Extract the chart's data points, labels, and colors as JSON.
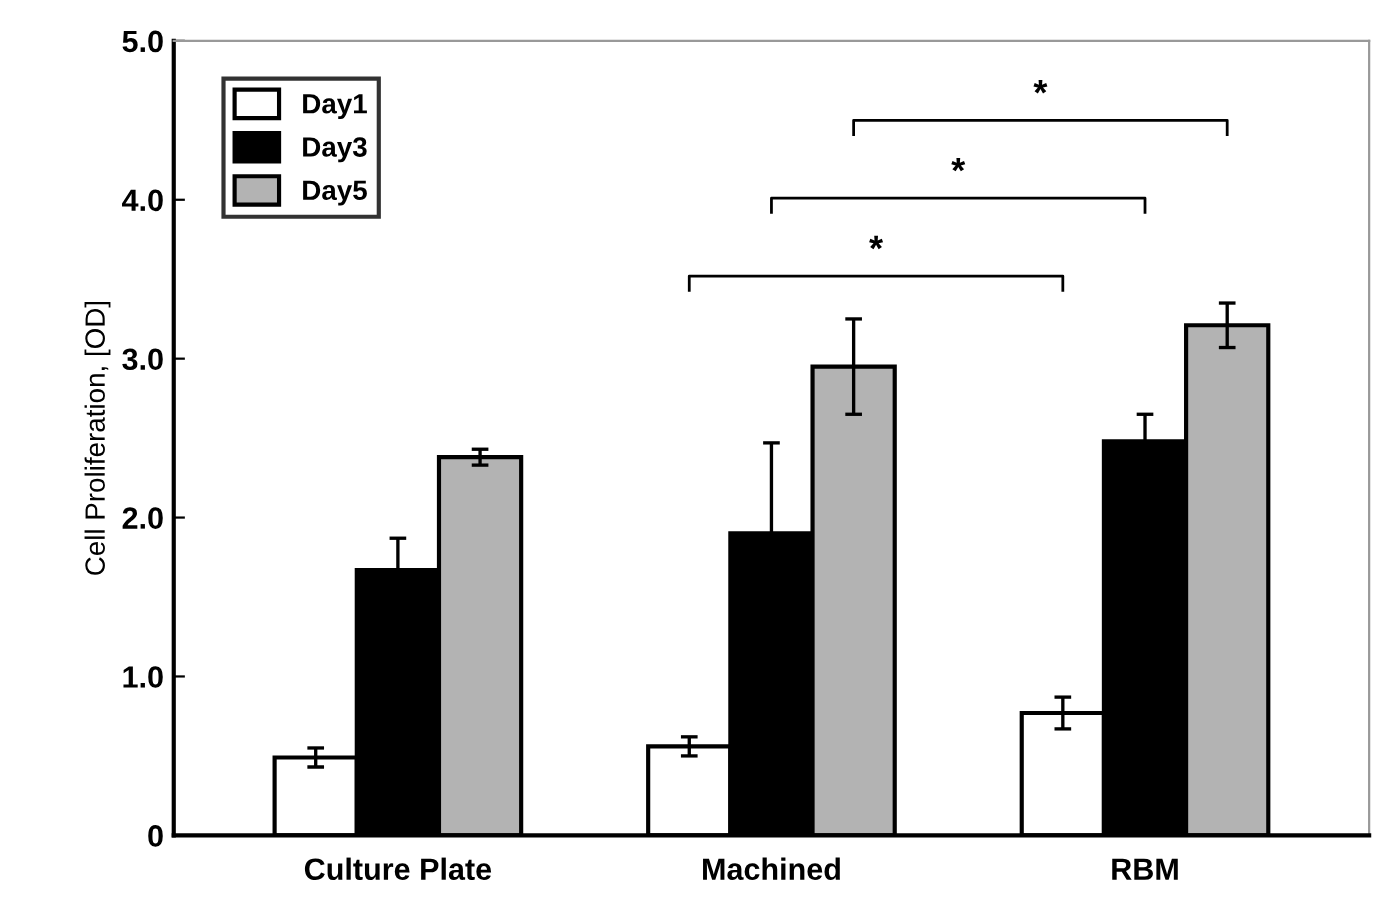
{
  "chart_data": {
    "type": "bar",
    "ylabel": "Cell Proliferation, [OD]",
    "categories": [
      "Culture Plate",
      "Machined",
      "RBM"
    ],
    "series": [
      {
        "name": "Day1",
        "color": "#ffffff",
        "values": [
          0.49,
          0.56,
          0.77
        ],
        "errors": [
          0.06,
          0.06,
          0.1
        ]
      },
      {
        "name": "Day3",
        "color": "#000000",
        "values": [
          1.67,
          1.9,
          2.48
        ],
        "errors": [
          0.2,
          0.57,
          0.17
        ]
      },
      {
        "name": "Day5",
        "color": "#b3b3b3",
        "values": [
          2.38,
          2.95,
          3.21
        ],
        "errors": [
          0.05,
          0.3,
          0.14
        ]
      }
    ],
    "ylim": [
      0,
      5
    ],
    "yticks": [
      0,
      {
        "value": 1,
        "label": "1.0"
      },
      {
        "value": 2,
        "label": "2.0"
      },
      {
        "value": 3,
        "label": "3.0"
      },
      {
        "value": 4,
        "label": "4.0"
      },
      {
        "value": 5,
        "label": "5.0"
      }
    ],
    "grid": false,
    "legend": "top left",
    "annotations": [
      "*",
      "*",
      "*"
    ]
  }
}
